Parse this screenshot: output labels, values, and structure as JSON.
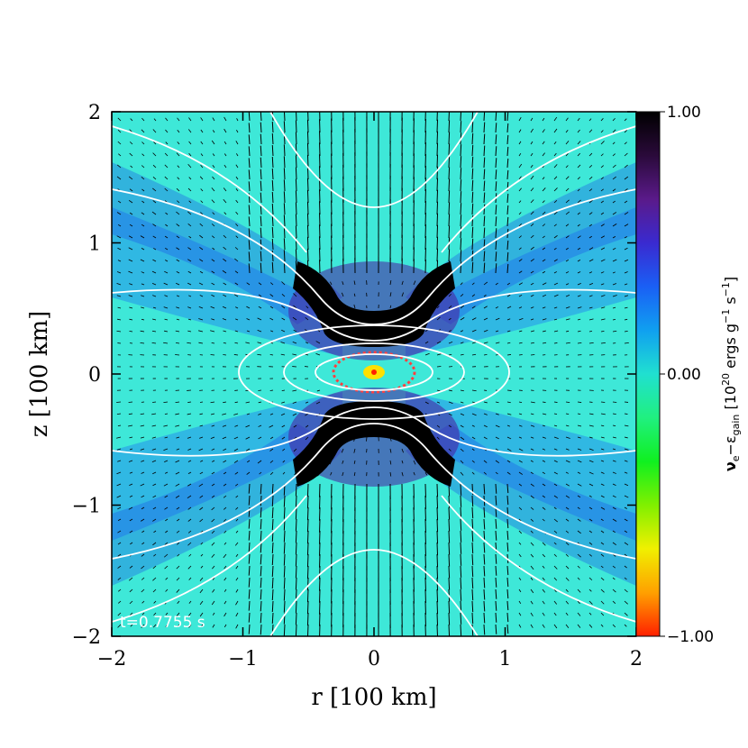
{
  "chart_data": {
    "type": "heatmap",
    "title": "",
    "xlabel": "r [100 km]",
    "ylabel": "z [100 km]",
    "xlim": [
      -2,
      2
    ],
    "ylim": [
      -2,
      2
    ],
    "x_ticks": [
      -2,
      -1,
      0,
      1,
      2
    ],
    "y_ticks": [
      -2,
      -1,
      0,
      1,
      2
    ],
    "x_tick_labels": [
      "−2",
      "−1",
      "0",
      "1",
      "2"
    ],
    "y_tick_labels": [
      "−2",
      "−1",
      "0",
      "1",
      "2"
    ],
    "annotation": "t=0.7755 s",
    "colorbar": {
      "label_prefix": "ν",
      "label_sub1": "e",
      "label_mid": "−ε",
      "label_sub2": "gain",
      "label_units_open": " [10",
      "label_exp": "20",
      "label_units_mid": " ergs g",
      "label_exp2": "−1",
      "label_units_mid2": " s",
      "label_exp3": "−1",
      "label_units_close": "]",
      "range": [
        -1.0,
        1.0
      ],
      "tick_values": [
        1.0,
        0.0,
        -1.0
      ],
      "tick_labels": [
        "1.00",
        "0.00",
        "−1.00"
      ],
      "colors_top_to_bottom": [
        "#000000",
        "#2a0a3a",
        "#5a1a8a",
        "#3a2ad0",
        "#1a5ff5",
        "#10a0f0",
        "#20e0d0",
        "#20f080",
        "#10f020",
        "#80f000",
        "#f0f000",
        "#ffa000",
        "#ff2000"
      ]
    },
    "features": {
      "background_value_color": "#3ee8d8",
      "gain_lobe_color": "#000000",
      "contour_color": "#ffffff",
      "velocity_arrows_color": "#000000",
      "grid": false
    }
  }
}
